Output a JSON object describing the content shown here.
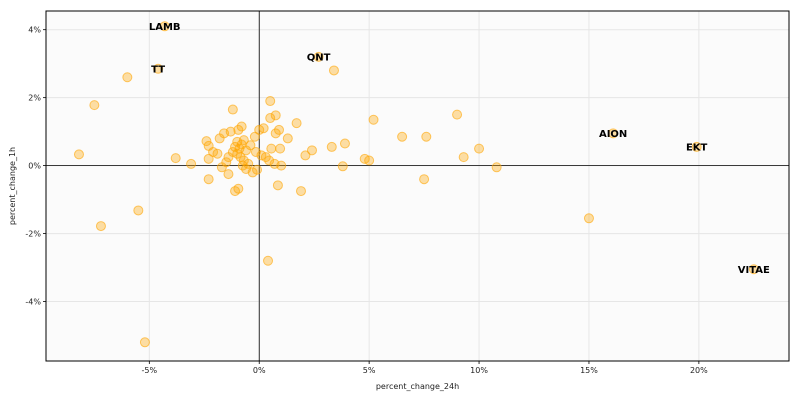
{
  "chart_data": {
    "type": "scatter",
    "title": "",
    "xlabel": "percent_change_24h",
    "ylabel": "percent_change_1h",
    "xlim": [
      -9.7,
      24.1
    ],
    "ylim": [
      -5.75,
      4.55
    ],
    "x_ticks": [
      -5,
      0,
      5,
      10,
      15,
      20
    ],
    "x_tick_labels": [
      "-5%",
      "0%",
      "5%",
      "10%",
      "15%",
      "20%"
    ],
    "y_ticks": [
      -4,
      -2,
      0,
      2,
      4
    ],
    "y_tick_labels": [
      "-4%",
      "-2%",
      "0%",
      "2%",
      "4%"
    ],
    "grid": true,
    "zero_lines": true,
    "color": "#FFA500",
    "points": [
      {
        "x": -8.2,
        "y": 0.33
      },
      {
        "x": -7.5,
        "y": 1.78
      },
      {
        "x": -7.2,
        "y": -1.78
      },
      {
        "x": -6.0,
        "y": 2.6
      },
      {
        "x": -5.5,
        "y": -1.32
      },
      {
        "x": -5.2,
        "y": -5.2
      },
      {
        "x": -4.6,
        "y": 2.85,
        "label": "TT"
      },
      {
        "x": -4.3,
        "y": 4.1,
        "label": "LAMB"
      },
      {
        "x": -3.8,
        "y": 0.22
      },
      {
        "x": -3.1,
        "y": 0.05
      },
      {
        "x": -2.4,
        "y": 0.72
      },
      {
        "x": -2.3,
        "y": 0.2
      },
      {
        "x": -2.3,
        "y": -0.4
      },
      {
        "x": -2.3,
        "y": 0.58
      },
      {
        "x": -2.1,
        "y": 0.4
      },
      {
        "x": -1.9,
        "y": 0.35
      },
      {
        "x": -1.8,
        "y": 0.8
      },
      {
        "x": -1.7,
        "y": -0.05
      },
      {
        "x": -1.6,
        "y": 0.95
      },
      {
        "x": -1.5,
        "y": 0.1
      },
      {
        "x": -1.4,
        "y": 0.25
      },
      {
        "x": -1.4,
        "y": -0.25
      },
      {
        "x": -1.3,
        "y": 1.0
      },
      {
        "x": -1.2,
        "y": 0.4
      },
      {
        "x": -1.2,
        "y": 1.65
      },
      {
        "x": -1.1,
        "y": -0.75
      },
      {
        "x": -1.1,
        "y": 0.55
      },
      {
        "x": -1.0,
        "y": 0.35
      },
      {
        "x": -1.0,
        "y": 0.7
      },
      {
        "x": -0.95,
        "y": -0.68
      },
      {
        "x": -0.95,
        "y": 1.05
      },
      {
        "x": -0.9,
        "y": 0.5
      },
      {
        "x": -0.85,
        "y": 0.25
      },
      {
        "x": -0.8,
        "y": 0.62
      },
      {
        "x": -0.8,
        "y": 1.15
      },
      {
        "x": -0.75,
        "y": 0.0
      },
      {
        "x": -0.7,
        "y": 0.15
      },
      {
        "x": -0.7,
        "y": 0.75
      },
      {
        "x": -0.6,
        "y": 0.45
      },
      {
        "x": -0.6,
        "y": -0.1
      },
      {
        "x": -0.5,
        "y": 0.05
      },
      {
        "x": -0.4,
        "y": 0.6
      },
      {
        "x": -0.3,
        "y": -0.2
      },
      {
        "x": -0.2,
        "y": 0.85
      },
      {
        "x": -0.15,
        "y": 0.4
      },
      {
        "x": -0.1,
        "y": -0.12
      },
      {
        "x": 0.0,
        "y": 1.05
      },
      {
        "x": 0.1,
        "y": 0.3
      },
      {
        "x": 0.2,
        "y": 1.1
      },
      {
        "x": 0.3,
        "y": 0.25
      },
      {
        "x": 0.4,
        "y": -2.8
      },
      {
        "x": 0.45,
        "y": 0.15
      },
      {
        "x": 0.5,
        "y": 1.9
      },
      {
        "x": 0.5,
        "y": 1.4
      },
      {
        "x": 0.55,
        "y": 0.5
      },
      {
        "x": 0.7,
        "y": 0.05
      },
      {
        "x": 0.75,
        "y": 0.95
      },
      {
        "x": 0.75,
        "y": 1.48
      },
      {
        "x": 0.85,
        "y": -0.58
      },
      {
        "x": 0.9,
        "y": 1.05
      },
      {
        "x": 0.95,
        "y": 0.5
      },
      {
        "x": 1.0,
        "y": 0.0
      },
      {
        "x": 1.3,
        "y": 0.8
      },
      {
        "x": 1.7,
        "y": 1.25
      },
      {
        "x": 1.9,
        "y": -0.75
      },
      {
        "x": 2.1,
        "y": 0.3
      },
      {
        "x": 2.4,
        "y": 0.45
      },
      {
        "x": 2.7,
        "y": 3.2,
        "label": "QNT"
      },
      {
        "x": 3.3,
        "y": 0.55
      },
      {
        "x": 3.4,
        "y": 2.8
      },
      {
        "x": 3.8,
        "y": -0.02
      },
      {
        "x": 3.9,
        "y": 0.65
      },
      {
        "x": 4.8,
        "y": 0.2
      },
      {
        "x": 5.0,
        "y": 0.15
      },
      {
        "x": 5.2,
        "y": 1.35
      },
      {
        "x": 6.5,
        "y": 0.85
      },
      {
        "x": 7.5,
        "y": -0.4
      },
      {
        "x": 7.6,
        "y": 0.85
      },
      {
        "x": 9.0,
        "y": 1.5
      },
      {
        "x": 9.3,
        "y": 0.25
      },
      {
        "x": 10.0,
        "y": 0.5
      },
      {
        "x": 10.8,
        "y": -0.05
      },
      {
        "x": 15.0,
        "y": -1.55
      },
      {
        "x": 16.1,
        "y": 0.95,
        "label": "AION"
      },
      {
        "x": 19.9,
        "y": 0.55,
        "label": "EKT"
      },
      {
        "x": 22.5,
        "y": -3.05,
        "label": "VITAE"
      }
    ]
  }
}
